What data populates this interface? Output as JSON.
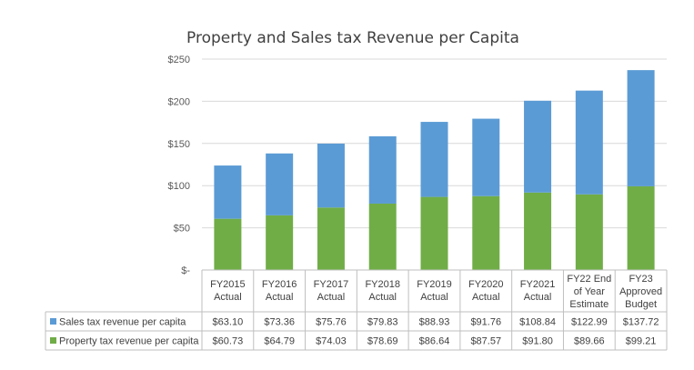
{
  "chart_data": {
    "type": "bar",
    "stacked": true,
    "title": "Property and Sales tax Revenue per Capita",
    "categories": [
      [
        "FY2015",
        "Actual"
      ],
      [
        "FY2016",
        "Actual"
      ],
      [
        "FY2017",
        "Actual"
      ],
      [
        "FY2018",
        "Actual"
      ],
      [
        "FY2019",
        "Actual"
      ],
      [
        "FY2020",
        "Actual"
      ],
      [
        "FY2021",
        "Actual"
      ],
      [
        "FY22 End",
        "of Year",
        "Estimate"
      ],
      [
        "FY23",
        "Approved",
        "Budget"
      ]
    ],
    "series": [
      {
        "name": "Sales tax revenue per capita",
        "color": "#5B9BD5",
        "values": [
          63.1,
          73.36,
          75.76,
          79.83,
          88.93,
          91.76,
          108.84,
          122.99,
          137.72
        ],
        "labels": [
          "$63.10",
          "$73.36",
          "$75.76",
          "$79.83",
          "$88.93",
          "$91.76",
          "$108.84",
          "$122.99",
          "$137.72"
        ]
      },
      {
        "name": "Property tax revenue per capita",
        "color": "#70AD47",
        "values": [
          60.73,
          64.79,
          74.03,
          78.69,
          86.64,
          87.57,
          91.8,
          89.66,
          99.21
        ],
        "labels": [
          "$60.73",
          "$64.79",
          "$74.03",
          "$78.69",
          "$86.64",
          "$87.57",
          "$91.80",
          "$89.66",
          "$99.21"
        ]
      }
    ],
    "ylim": [
      0,
      250
    ],
    "yticks": [
      0,
      50,
      100,
      150,
      200,
      250
    ],
    "ytick_labels": [
      "$-",
      "$50",
      "$100",
      "$150",
      "$200",
      "$250"
    ],
    "grid": true,
    "legend": "data-table-below",
    "gridline_color": "#D9D9D9",
    "table_border_color": "#BFBFBF"
  }
}
